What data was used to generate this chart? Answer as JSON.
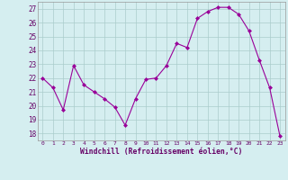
{
  "x": [
    0,
    1,
    2,
    3,
    4,
    5,
    6,
    7,
    8,
    9,
    10,
    11,
    12,
    13,
    14,
    15,
    16,
    17,
    18,
    19,
    20,
    21,
    22,
    23
  ],
  "y": [
    22.0,
    21.3,
    19.7,
    22.9,
    21.5,
    21.0,
    20.5,
    19.9,
    18.6,
    20.5,
    21.9,
    22.0,
    22.9,
    24.5,
    24.2,
    26.3,
    26.8,
    27.1,
    27.1,
    26.6,
    25.4,
    23.3,
    21.3,
    17.8
  ],
  "line_color": "#990099",
  "marker": "D",
  "marker_size": 2,
  "bg_color": "#d5eef0",
  "grid_color": "#aacccc",
  "xlabel": "Windchill (Refroidissement éolien,°C)",
  "xlabel_color": "#660066",
  "tick_color": "#660066",
  "ylim": [
    17.5,
    27.5
  ],
  "yticks": [
    18,
    19,
    20,
    21,
    22,
    23,
    24,
    25,
    26,
    27
  ],
  "xlim": [
    -0.5,
    23.5
  ],
  "xticks": [
    0,
    1,
    2,
    3,
    4,
    5,
    6,
    7,
    8,
    9,
    10,
    11,
    12,
    13,
    14,
    15,
    16,
    17,
    18,
    19,
    20,
    21,
    22,
    23
  ]
}
